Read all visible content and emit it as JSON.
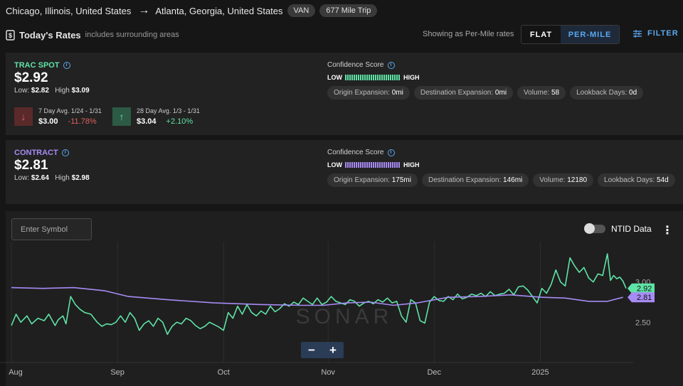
{
  "route": {
    "origin": "Chicago, Illinois, United States",
    "arrow_icon": "right-arrow-icon",
    "destination": "Atlanta, Georgia, United States",
    "equipment": "VAN",
    "trip": "677 Mile Trip"
  },
  "rates_header": {
    "title": "Today's Rates",
    "subtitle": "includes surrounding areas",
    "showing": "Showing as Per-Mile rates",
    "flat_label": "FLAT",
    "per_mile_label": "PER-MILE",
    "filter_label": "FILTER"
  },
  "spot": {
    "label": "TRAC SPOT",
    "rate": "$2.92",
    "low_label": "Low:",
    "low": "$2.82",
    "high_label": "High",
    "high": "$3.09",
    "avg7": {
      "period": "7 Day Avg. 1/24 - 1/31",
      "value": "$3.00",
      "change": "-11.78%"
    },
    "avg28": {
      "period": "28 Day Avg. 1/3 - 1/31",
      "value": "$3.04",
      "change": "+2.10%"
    },
    "confidence_label": "Confidence Score",
    "scale_low": "LOW",
    "scale_high": "HIGH",
    "chips": [
      {
        "label": "Origin Expansion:",
        "value": "0mi"
      },
      {
        "label": "Destination Expansion:",
        "value": "0mi"
      },
      {
        "label": "Volume:",
        "value": "58"
      },
      {
        "label": "Lookback Days:",
        "value": "0d"
      }
    ]
  },
  "contract": {
    "label": "CONTRACT",
    "rate": "$2.81",
    "low_label": "Low:",
    "low": "$2.64",
    "high_label": "High",
    "high": "$2.98",
    "confidence_label": "Confidence Score",
    "scale_low": "LOW",
    "scale_high": "HIGH",
    "chips": [
      {
        "label": "Origin Expansion:",
        "value": "175mi"
      },
      {
        "label": "Destination Expansion:",
        "value": "146mi"
      },
      {
        "label": "Volume:",
        "value": "12180"
      },
      {
        "label": "Lookback Days:",
        "value": "54d"
      }
    ]
  },
  "chart_panel": {
    "symbol_placeholder": "Enter Symbol",
    "ntid_label": "NTID Data",
    "watermark": "SONAR",
    "zoom_out": "−",
    "zoom_in": "+"
  },
  "colors": {
    "spot": "#5fe3a6",
    "contract": "#a78bf5",
    "accent": "#5aa8f0",
    "down": "#e06060",
    "up": "#5fe3a6"
  },
  "chart_data": {
    "type": "line",
    "x_ticks": [
      "Aug",
      "Sep",
      "Oct",
      "Nov",
      "Dec",
      "2025"
    ],
    "y_ticks": [
      3.0,
      2.5
    ],
    "ylim": [
      2.0,
      3.5
    ],
    "series": [
      {
        "name": "TRAC SPOT",
        "last_label": "2.92",
        "x": [
          0,
          3,
          6,
          10,
          13,
          17,
          21,
          24,
          28,
          30,
          33,
          35,
          38,
          41,
          44,
          47,
          51,
          53,
          55,
          58,
          61,
          64,
          67,
          70,
          73,
          76,
          79,
          82,
          85,
          88,
          91,
          94,
          97,
          100,
          103,
          106,
          109,
          112,
          115,
          118,
          121,
          124,
          127,
          130,
          133,
          136,
          139,
          142,
          145,
          148,
          151,
          154,
          157,
          160,
          163,
          166,
          169,
          172,
          175,
          178,
          181,
          184,
          187,
          190,
          193,
          196,
          199,
          202,
          205,
          208,
          211,
          214,
          217,
          220,
          223,
          226,
          229,
          232,
          235,
          238,
          241,
          244,
          247,
          250,
          253,
          256,
          259,
          262,
          265,
          268,
          271,
          274,
          277,
          280,
          283,
          286,
          289,
          292,
          295,
          298,
          301,
          304,
          307,
          310,
          313,
          316,
          319,
          322,
          325,
          328,
          331,
          334,
          337,
          340,
          343,
          346,
          349,
          352,
          355,
          358,
          361,
          364,
          367,
          370,
          373,
          376,
          379,
          382,
          384,
          386,
          388,
          390,
          392,
          394
        ],
        "y": [
          2.46,
          2.6,
          2.5,
          2.58,
          2.48,
          2.55,
          2.52,
          2.6,
          2.46,
          2.53,
          2.58,
          2.48,
          2.82,
          2.72,
          2.66,
          2.62,
          2.6,
          2.55,
          2.5,
          2.45,
          2.48,
          2.47,
          2.5,
          2.58,
          2.5,
          2.62,
          2.55,
          2.4,
          2.48,
          2.52,
          2.45,
          2.55,
          2.5,
          2.35,
          2.45,
          2.5,
          2.48,
          2.55,
          2.52,
          2.46,
          2.42,
          2.45,
          2.5,
          2.47,
          2.44,
          2.4,
          2.62,
          2.55,
          2.7,
          2.6,
          2.72,
          2.62,
          2.58,
          2.64,
          2.6,
          2.7,
          2.63,
          2.67,
          2.73,
          2.7,
          2.75,
          2.72,
          2.8,
          2.76,
          2.72,
          2.8,
          2.72,
          2.75,
          2.82,
          2.76,
          2.74,
          2.72,
          2.78,
          2.76,
          2.7,
          2.74,
          2.76,
          2.73,
          2.78,
          2.75,
          2.8,
          2.74,
          2.76,
          2.58,
          2.5,
          2.78,
          2.74,
          2.52,
          2.49,
          2.75,
          2.82,
          2.77,
          2.76,
          2.82,
          2.78,
          2.85,
          2.79,
          2.81,
          2.85,
          2.83,
          2.86,
          2.82,
          2.88,
          2.83,
          2.85,
          2.86,
          2.91,
          2.84,
          2.94,
          2.95,
          2.9,
          2.82,
          2.74,
          2.92,
          2.86,
          2.97,
          3.15,
          3.0,
          2.95,
          3.3,
          3.2,
          3.12,
          3.18,
          3.05,
          3.0,
          3.1,
          3.08,
          3.35,
          3.02,
          3.08,
          3.04,
          3.06,
          3.01,
          2.92
        ]
      },
      {
        "name": "CONTRACT",
        "last_label": "2.81",
        "x": [
          0,
          20,
          40,
          60,
          75,
          100,
          130,
          160,
          185,
          200,
          215,
          230,
          245,
          260,
          280,
          300,
          320,
          340,
          355,
          370,
          382,
          392
        ],
        "y": [
          2.93,
          2.92,
          2.93,
          2.89,
          2.82,
          2.78,
          2.74,
          2.72,
          2.71,
          2.71,
          2.74,
          2.75,
          2.71,
          2.74,
          2.81,
          2.82,
          2.84,
          2.81,
          2.8,
          2.76,
          2.76,
          2.81
        ]
      }
    ]
  }
}
